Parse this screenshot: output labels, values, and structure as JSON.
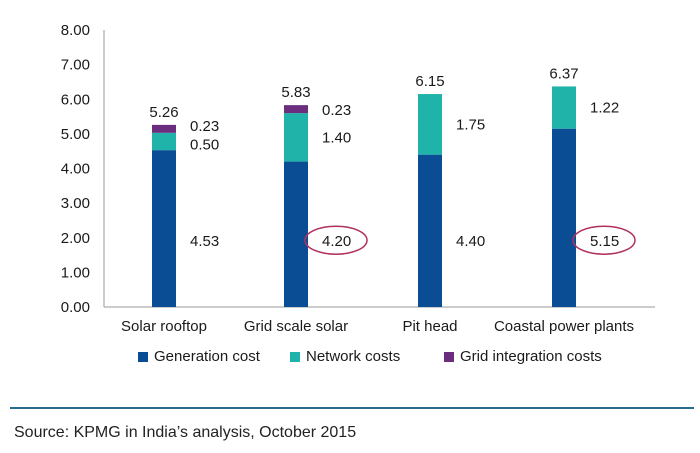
{
  "chart_data": {
    "type": "bar",
    "stacked": true,
    "categories": [
      "Solar rooftop",
      "Grid scale solar",
      "Pit head",
      "Coastal power plants"
    ],
    "series": [
      {
        "name": "Generation cost",
        "color": "#0b4d94",
        "values": [
          4.53,
          4.2,
          4.4,
          5.15
        ],
        "labels": [
          "4.53",
          "4.20",
          "4.40",
          "5.15"
        ]
      },
      {
        "name": "Network costs",
        "color": "#1fb3aa",
        "values": [
          0.5,
          1.4,
          1.75,
          1.22
        ],
        "labels": [
          "0.50",
          "1.40",
          "1.75",
          "1.22"
        ]
      },
      {
        "name": "Grid integration costs",
        "color": "#6b2e7e",
        "values": [
          0.23,
          0.23,
          0,
          0
        ],
        "labels": [
          "0.23",
          "0.23",
          "",
          ""
        ]
      }
    ],
    "totals": [
      5.26,
      5.83,
      6.15,
      6.37
    ],
    "total_labels": [
      "5.26",
      "5.83",
      "6.15",
      "6.37"
    ],
    "circled": [
      {
        "category": "Grid scale solar",
        "series": "Generation cost"
      },
      {
        "category": "Coastal power plants",
        "series": "Generation cost"
      }
    ],
    "circle_color": "#b0305e",
    "ylim": [
      0,
      8
    ],
    "yticks": [
      "0.00",
      "1.00",
      "2.00",
      "3.00",
      "4.00",
      "5.00",
      "6.00",
      "7.00",
      "8.00"
    ],
    "legend_position": "bottom",
    "grid": false
  },
  "source": "Source: KPMG in India’s analysis, October 2015"
}
